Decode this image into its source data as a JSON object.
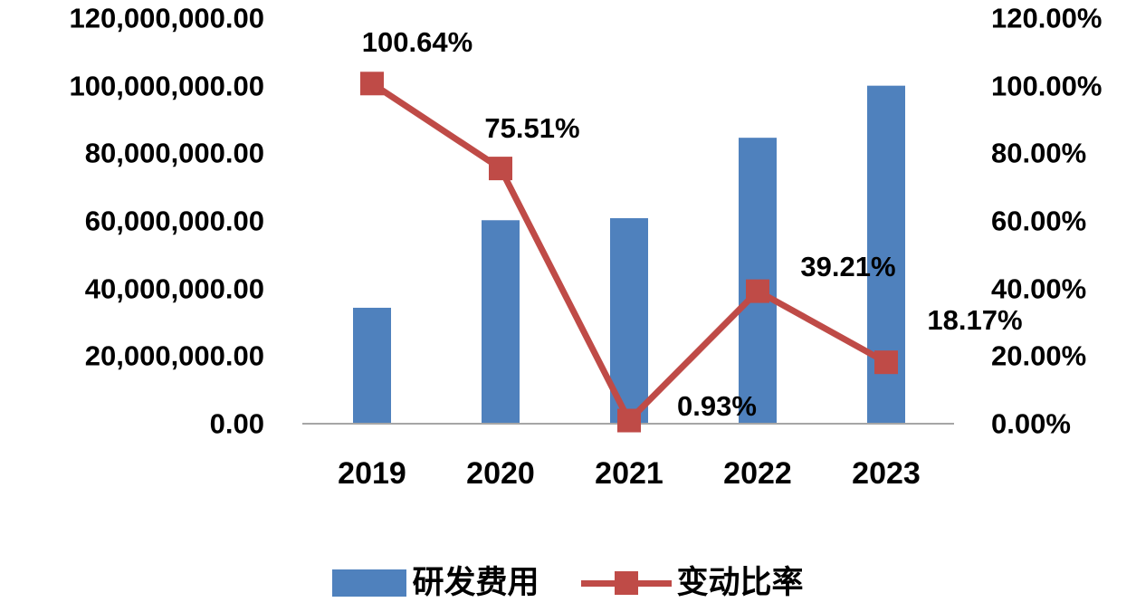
{
  "chart_data": {
    "type": "bar",
    "combo": "bar+line",
    "title": "",
    "categories": [
      "2019",
      "2020",
      "2021",
      "2022",
      "2023"
    ],
    "series": [
      {
        "name": "研发费用",
        "type": "bar",
        "axis": "left",
        "color": "#4f81bd",
        "values": [
          34300000,
          60200000,
          60800000,
          84600000,
          100000000
        ]
      },
      {
        "name": "变动比率",
        "type": "line",
        "axis": "right",
        "color": "#bf4b47",
        "marker": "square",
        "values": [
          100.64,
          75.51,
          0.93,
          39.21,
          18.17
        ],
        "point_labels": [
          "100.64%",
          "75.51%",
          "0.93%",
          "39.21%",
          "18.17%"
        ]
      }
    ],
    "left_axis": {
      "min": 0,
      "max": 120000000,
      "step": 20000000,
      "tick_labels": [
        "120,000,000.00",
        "100,000,000.00",
        "80,000,000.00",
        "60,000,000.00",
        "40,000,000.00",
        "20,000,000.00",
        "0.00"
      ]
    },
    "right_axis": {
      "min": 0,
      "max": 120,
      "step": 20,
      "tick_labels": [
        "120.00%",
        "100.00%",
        "80.00%",
        "60.00%",
        "40.00%",
        "20.00%",
        "0.00%"
      ]
    },
    "grid": false,
    "legend_position": "bottom",
    "legend": [
      {
        "label": "研发费用",
        "swatch": "bar",
        "color": "#4f81bd"
      },
      {
        "label": "变动比率",
        "swatch": "line-with-square-marker",
        "color": "#bf4b47"
      }
    ]
  },
  "colors": {
    "bar": "#4f81bd",
    "line": "#bf4b47",
    "axis_line": "#a6a6a6",
    "text": "#000000",
    "background": "#ffffff"
  }
}
